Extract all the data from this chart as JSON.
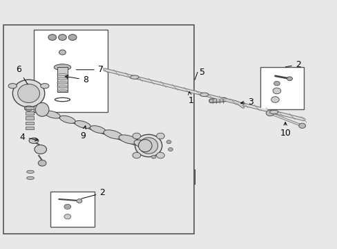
{
  "bg_color": "#e8e8e8",
  "white": "#ffffff",
  "black": "#000000",
  "gray": "#888888",
  "dark_gray": "#444444",
  "light_gray": "#cccccc"
}
